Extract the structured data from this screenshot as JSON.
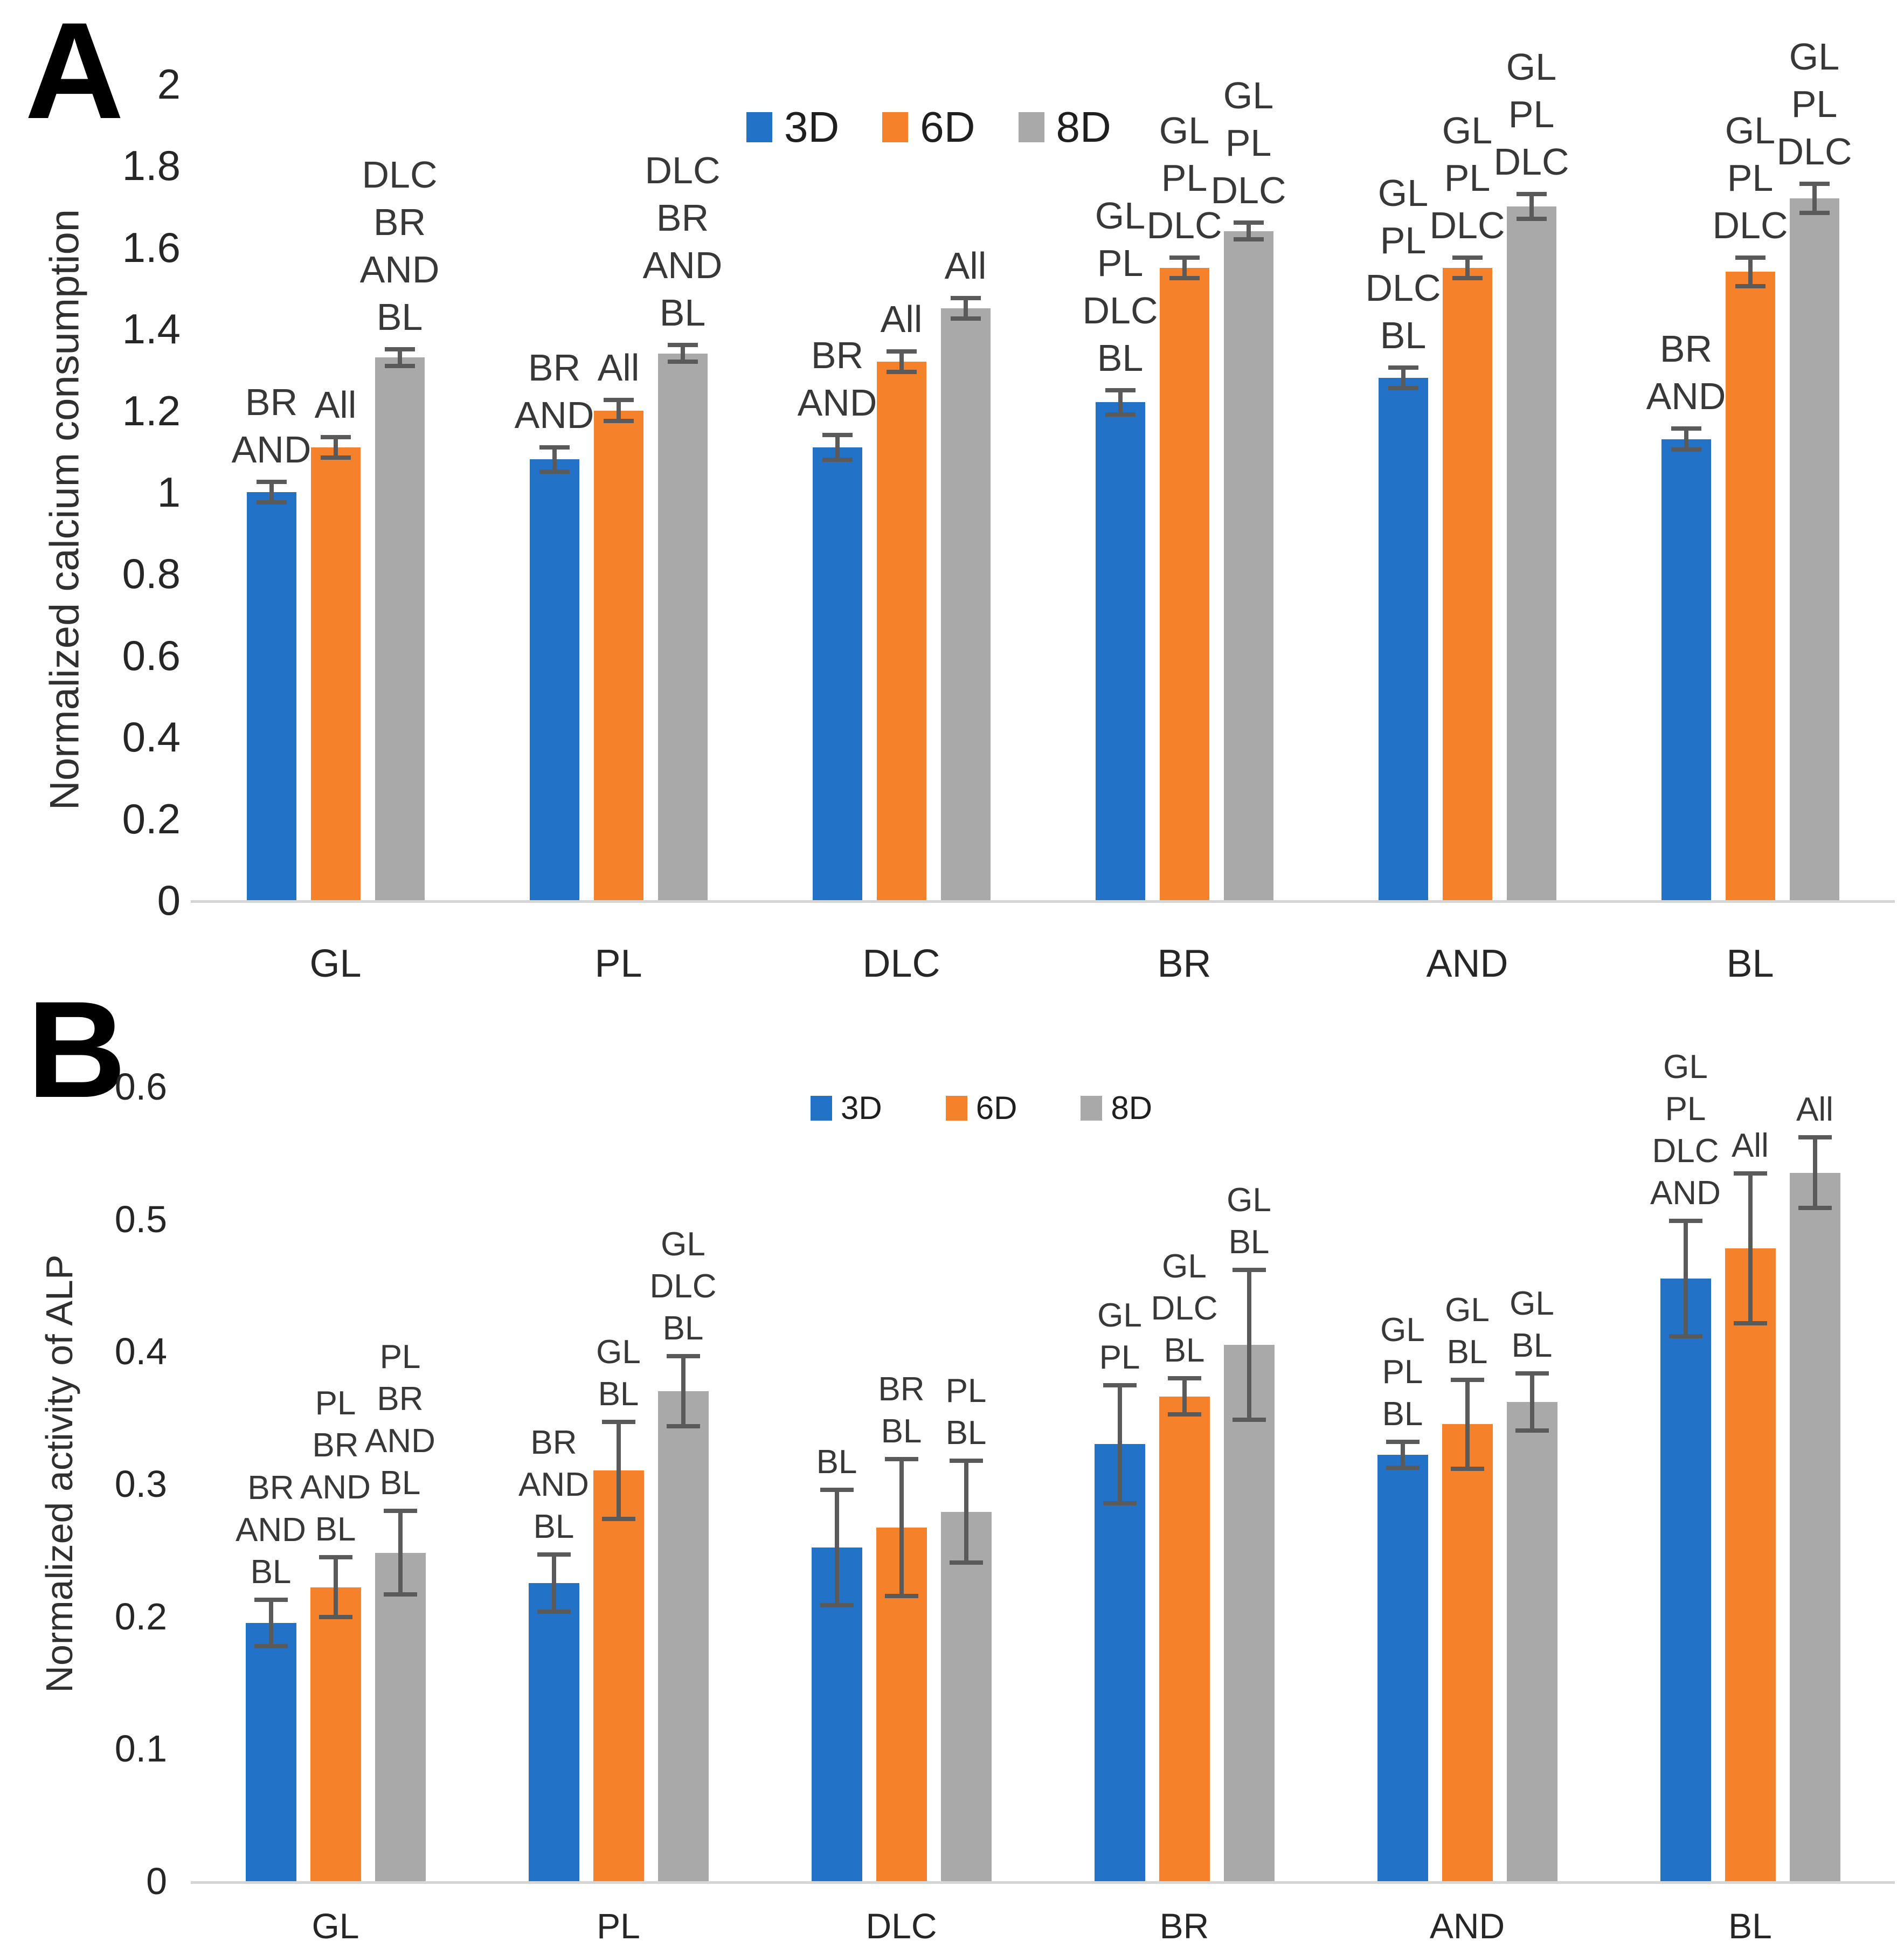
{
  "colors": {
    "series": [
      "#2272C8",
      "#F5812A",
      "#A9A9A9"
    ],
    "error_bar": "#5a5a5a",
    "axis_line": "#d5d5d5",
    "text": "#262626"
  },
  "chart_data": [
    {
      "id": "A",
      "panel_letter": "A",
      "type": "bar",
      "title": "",
      "xlabel": "",
      "ylabel": "Normalized calcium consumption",
      "ylim": [
        0,
        2
      ],
      "ytick_step": 0.2,
      "ytick_labels": [
        "2",
        "1.8",
        "1.6",
        "1.4",
        "1.2",
        "1",
        "0.8",
        "0.6",
        "0.4",
        "0.2",
        "0"
      ],
      "grid": false,
      "legend_position": "top-center",
      "legend": [
        "3D",
        "6D",
        "8D"
      ],
      "categories": [
        "GL",
        "PL",
        "DLC",
        "BR",
        "AND",
        "BL"
      ],
      "series": [
        {
          "name": "3D",
          "values": [
            1.0,
            1.08,
            1.11,
            1.22,
            1.28,
            1.13
          ],
          "errors": [
            0.02,
            0.025,
            0.025,
            0.025,
            0.02,
            0.02
          ]
        },
        {
          "name": "6D",
          "values": [
            1.11,
            1.2,
            1.32,
            1.55,
            1.55,
            1.54
          ],
          "errors": [
            0.02,
            0.02,
            0.02,
            0.02,
            0.02,
            0.03
          ]
        },
        {
          "name": "8D",
          "values": [
            1.33,
            1.34,
            1.45,
            1.64,
            1.7,
            1.72
          ],
          "errors": [
            0.015,
            0.015,
            0.02,
            0.015,
            0.025,
            0.03
          ]
        }
      ],
      "annotations": [
        [
          [
            "BR",
            "AND"
          ],
          [
            "All"
          ],
          [
            "DLC",
            "BR",
            "AND",
            "BL"
          ]
        ],
        [
          [
            "BR",
            "AND"
          ],
          [
            "All"
          ],
          [
            "DLC",
            "BR",
            "AND",
            "BL"
          ]
        ],
        [
          [
            "BR",
            "AND"
          ],
          [
            "All"
          ],
          [
            "All"
          ]
        ],
        [
          [
            "GL",
            "PL",
            "DLC",
            "BL"
          ],
          [
            "GL",
            "PL",
            "DLC"
          ],
          [
            "GL",
            "PL",
            "DLC"
          ]
        ],
        [
          [
            "GL",
            "PL",
            "DLC",
            "BL"
          ],
          [
            "GL",
            "PL",
            "DLC"
          ],
          [
            "GL",
            "PL",
            "DLC"
          ]
        ],
        [
          [
            "BR",
            "AND"
          ],
          [
            "GL",
            "PL",
            "DLC"
          ],
          [
            "GL",
            "PL",
            "DLC"
          ]
        ]
      ]
    },
    {
      "id": "B",
      "panel_letter": "B",
      "type": "bar",
      "title": "",
      "xlabel": "",
      "ylabel": "Normalized activity of ALP",
      "ylim": [
        0,
        0.6
      ],
      "ytick_step": 0.1,
      "ytick_labels": [
        "0.6",
        "0.5",
        "0.4",
        "0.3",
        "0.2",
        "0.1",
        "0"
      ],
      "grid": false,
      "legend_position": "top-center",
      "legend": [
        "3D",
        "6D",
        "8D"
      ],
      "categories": [
        "GL",
        "PL",
        "DLC",
        "BR",
        "AND",
        "BL"
      ],
      "series": [
        {
          "name": "3D",
          "values": [
            0.195,
            0.225,
            0.252,
            0.33,
            0.322,
            0.455
          ],
          "errors": [
            0.016,
            0.02,
            0.042,
            0.043,
            0.008,
            0.042
          ]
        },
        {
          "name": "6D",
          "values": [
            0.222,
            0.31,
            0.267,
            0.366,
            0.345,
            0.478
          ],
          "errors": [
            0.021,
            0.035,
            0.05,
            0.012,
            0.032,
            0.055
          ]
        },
        {
          "name": "8D",
          "values": [
            0.248,
            0.37,
            0.279,
            0.405,
            0.362,
            0.535
          ],
          "errors": [
            0.03,
            0.025,
            0.037,
            0.055,
            0.02,
            0.025
          ]
        }
      ],
      "annotations": [
        [
          [
            "BR",
            "AND",
            "BL"
          ],
          [
            "PL",
            "BR",
            "AND",
            "BL"
          ],
          [
            "PL",
            "BR",
            "AND",
            "BL"
          ]
        ],
        [
          [
            "BR",
            "AND",
            "BL"
          ],
          [
            "GL",
            "BL"
          ],
          [
            "GL",
            "DLC",
            "BL"
          ]
        ],
        [
          [
            "BL"
          ],
          [
            "BR",
            "BL"
          ],
          [
            "PL",
            "BL"
          ]
        ],
        [
          [
            "GL",
            "PL"
          ],
          [
            "GL",
            "DLC",
            "BL"
          ],
          [
            "GL",
            "BL"
          ]
        ],
        [
          [
            "GL",
            "PL",
            "BL"
          ],
          [
            "GL",
            "BL"
          ],
          [
            "GL",
            "BL"
          ]
        ],
        [
          [
            "GL",
            "PL",
            "DLC",
            "AND"
          ],
          [
            "All"
          ],
          [
            "All"
          ]
        ]
      ]
    }
  ]
}
